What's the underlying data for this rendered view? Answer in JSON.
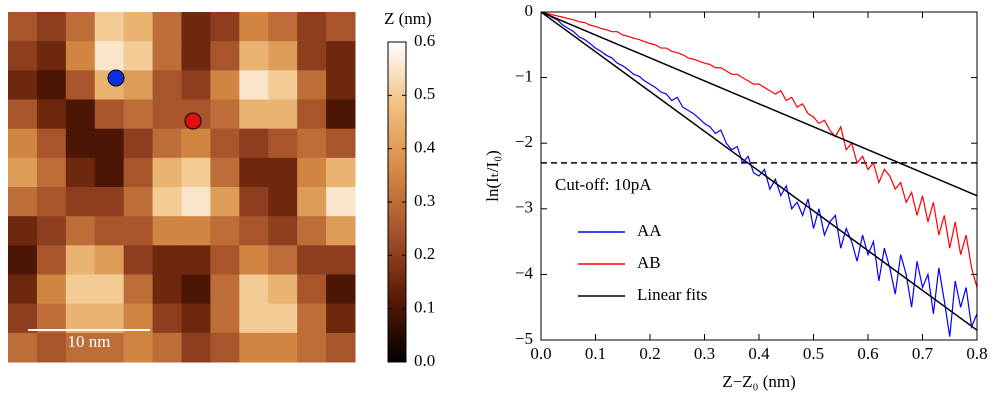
{
  "chart_data": [
    {
      "type": "heatmap",
      "colorbar_title": "Z (nm)",
      "scalebar_label": "10 nm",
      "zlim": [
        0,
        0.6
      ],
      "zticks": [
        {
          "value": 0,
          "label": "0.0"
        },
        0.1,
        0.2,
        0.3,
        0.4,
        0.5,
        0.6
      ],
      "colormap": [
        "#000000",
        "#5a1a05",
        "#a5502a",
        "#d58a45",
        "#f0c080",
        "#ffffff"
      ],
      "z": [
        [
          0.25,
          0.2,
          0.3,
          0.5,
          0.45,
          0.3,
          0.15,
          0.2,
          0.35,
          0.3,
          0.2,
          0.25
        ],
        [
          0.2,
          0.15,
          0.35,
          0.55,
          0.5,
          0.3,
          0.15,
          0.25,
          0.45,
          0.4,
          0.2,
          0.15
        ],
        [
          0.15,
          0.1,
          0.25,
          0.45,
          0.4,
          0.25,
          0.2,
          0.35,
          0.55,
          0.5,
          0.3,
          0.15
        ],
        [
          0.25,
          0.15,
          0.1,
          0.25,
          0.3,
          0.25,
          0.25,
          0.3,
          0.45,
          0.45,
          0.25,
          0.1
        ],
        [
          0.35,
          0.25,
          0.1,
          0.1,
          0.2,
          0.3,
          0.35,
          0.25,
          0.2,
          0.25,
          0.3,
          0.25
        ],
        [
          0.4,
          0.3,
          0.15,
          0.1,
          0.25,
          0.45,
          0.5,
          0.3,
          0.15,
          0.15,
          0.35,
          0.45
        ],
        [
          0.3,
          0.25,
          0.2,
          0.2,
          0.3,
          0.5,
          0.55,
          0.4,
          0.2,
          0.15,
          0.4,
          0.55
        ],
        [
          0.15,
          0.2,
          0.3,
          0.25,
          0.25,
          0.35,
          0.35,
          0.3,
          0.25,
          0.2,
          0.3,
          0.4
        ],
        [
          0.1,
          0.25,
          0.45,
          0.4,
          0.2,
          0.15,
          0.15,
          0.25,
          0.35,
          0.3,
          0.2,
          0.2
        ],
        [
          0.15,
          0.35,
          0.5,
          0.5,
          0.3,
          0.15,
          0.1,
          0.3,
          0.5,
          0.45,
          0.25,
          0.1
        ],
        [
          0.2,
          0.3,
          0.45,
          0.45,
          0.35,
          0.2,
          0.15,
          0.3,
          0.5,
          0.5,
          0.3,
          0.15
        ],
        [
          0.3,
          0.25,
          0.3,
          0.3,
          0.35,
          0.3,
          0.2,
          0.25,
          0.35,
          0.35,
          0.3,
          0.25
        ]
      ]
    },
    {
      "type": "line",
      "xlabel": "Z−Z₀ (nm)",
      "ylabel": "ln(Iₜ/I₀)",
      "xlim": [
        0,
        0.8
      ],
      "ylim": [
        -5,
        0
      ],
      "xticks": [
        {
          "value": 0,
          "label": "0.0"
        },
        0.1,
        0.2,
        0.3,
        0.4,
        0.5,
        0.6,
        0.7,
        0.8
      ],
      "yticks": [
        0,
        {
          "value": -1,
          "label": "−1"
        },
        {
          "value": -2,
          "label": "−2"
        },
        {
          "value": -3,
          "label": "−3"
        },
        {
          "value": -4,
          "label": "−4"
        },
        {
          "value": -5,
          "label": "−5"
        }
      ],
      "cutoff": {
        "y": -2.3,
        "label": "Cut-off: 10pA"
      },
      "series": [
        {
          "name": "AA",
          "color": "#0000ff",
          "x": [
            0,
            0.01,
            0.02,
            0.03,
            0.04,
            0.05,
            0.06,
            0.07,
            0.08,
            0.09,
            0.1,
            0.11,
            0.12,
            0.13,
            0.14,
            0.15,
            0.16,
            0.17,
            0.18,
            0.19,
            0.2,
            0.21,
            0.22,
            0.23,
            0.24,
            0.25,
            0.26,
            0.27,
            0.28,
            0.29,
            0.3,
            0.31,
            0.32,
            0.33,
            0.34,
            0.35,
            0.36,
            0.37,
            0.38,
            0.39,
            0.4,
            0.41,
            0.42,
            0.43,
            0.44,
            0.45,
            0.46,
            0.47,
            0.48,
            0.49,
            0.5,
            0.51,
            0.52,
            0.53,
            0.54,
            0.55,
            0.56,
            0.57,
            0.58,
            0.59,
            0.6,
            0.61,
            0.62,
            0.63,
            0.64,
            0.65,
            0.66,
            0.67,
            0.68,
            0.69,
            0.7,
            0.71,
            0.72,
            0.73,
            0.74,
            0.75,
            0.76,
            0.77,
            0.78,
            0.79,
            0.8
          ],
          "values": [
            0,
            -0.03,
            -0.08,
            -0.12,
            -0.2,
            -0.25,
            -0.3,
            -0.38,
            -0.42,
            -0.48,
            -0.55,
            -0.6,
            -0.66,
            -0.7,
            -0.78,
            -0.82,
            -0.88,
            -0.95,
            -0.98,
            -1.05,
            -1.1,
            -1.15,
            -1.22,
            -1.25,
            -1.35,
            -1.3,
            -1.45,
            -1.5,
            -1.55,
            -1.62,
            -1.7,
            -1.75,
            -1.85,
            -1.8,
            -2.0,
            -2.1,
            -2.05,
            -2.3,
            -2.2,
            -2.45,
            -2.5,
            -2.4,
            -2.7,
            -2.55,
            -2.8,
            -2.65,
            -3.0,
            -2.9,
            -3.1,
            -2.85,
            -3.3,
            -3.0,
            -3.4,
            -3.2,
            -3.1,
            -3.6,
            -3.3,
            -3.5,
            -3.8,
            -3.4,
            -3.7,
            -3.5,
            -4.1,
            -3.6,
            -3.9,
            -4.3,
            -3.7,
            -4.0,
            -4.5,
            -3.8,
            -4.2,
            -4.0,
            -4.6,
            -3.9,
            -4.4,
            -4.95,
            -4.1,
            -4.5,
            -4.2,
            -4.8,
            -4.6
          ]
        },
        {
          "name": "AB",
          "color": "#ff0000",
          "x": [
            0,
            0.01,
            0.02,
            0.03,
            0.04,
            0.05,
            0.06,
            0.07,
            0.08,
            0.09,
            0.1,
            0.11,
            0.12,
            0.13,
            0.14,
            0.15,
            0.16,
            0.17,
            0.18,
            0.19,
            0.2,
            0.21,
            0.22,
            0.23,
            0.24,
            0.25,
            0.26,
            0.27,
            0.28,
            0.29,
            0.3,
            0.31,
            0.32,
            0.33,
            0.34,
            0.35,
            0.36,
            0.37,
            0.38,
            0.39,
            0.4,
            0.41,
            0.42,
            0.43,
            0.44,
            0.45,
            0.46,
            0.47,
            0.48,
            0.49,
            0.5,
            0.51,
            0.52,
            0.53,
            0.54,
            0.55,
            0.56,
            0.57,
            0.58,
            0.59,
            0.6,
            0.61,
            0.62,
            0.63,
            0.64,
            0.65,
            0.66,
            0.67,
            0.68,
            0.69,
            0.7,
            0.71,
            0.72,
            0.73,
            0.74,
            0.75,
            0.76,
            0.77,
            0.78,
            0.79,
            0.8
          ],
          "values": [
            0,
            -0.02,
            -0.04,
            -0.06,
            -0.08,
            -0.1,
            -0.12,
            -0.15,
            -0.16,
            -0.2,
            -0.22,
            -0.25,
            -0.27,
            -0.3,
            -0.3,
            -0.35,
            -0.37,
            -0.4,
            -0.42,
            -0.45,
            -0.48,
            -0.5,
            -0.55,
            -0.55,
            -0.6,
            -0.62,
            -0.65,
            -0.7,
            -0.72,
            -0.75,
            -0.78,
            -0.8,
            -0.85,
            -0.85,
            -0.9,
            -0.95,
            -0.95,
            -1.0,
            -1.05,
            -1.1,
            -1.1,
            -1.15,
            -1.2,
            -1.25,
            -1.2,
            -1.35,
            -1.3,
            -1.45,
            -1.4,
            -1.55,
            -1.6,
            -1.7,
            -1.65,
            -1.8,
            -1.9,
            -1.75,
            -2.1,
            -2.0,
            -2.3,
            -2.2,
            -2.4,
            -2.3,
            -2.6,
            -2.4,
            -2.5,
            -2.7,
            -2.6,
            -2.9,
            -2.75,
            -3.1,
            -2.8,
            -3.2,
            -2.9,
            -3.4,
            -3.1,
            -3.6,
            -3.2,
            -3.7,
            -3.4,
            -3.9,
            -4.2
          ]
        },
        {
          "name": "Linear fits",
          "color": "#000000",
          "x": [
            0,
            0.8
          ],
          "values": [
            0,
            -4.85
          ]
        },
        {
          "color": "#000000",
          "x": [
            0,
            0.8
          ],
          "values": [
            0,
            -2.8
          ]
        }
      ]
    }
  ]
}
